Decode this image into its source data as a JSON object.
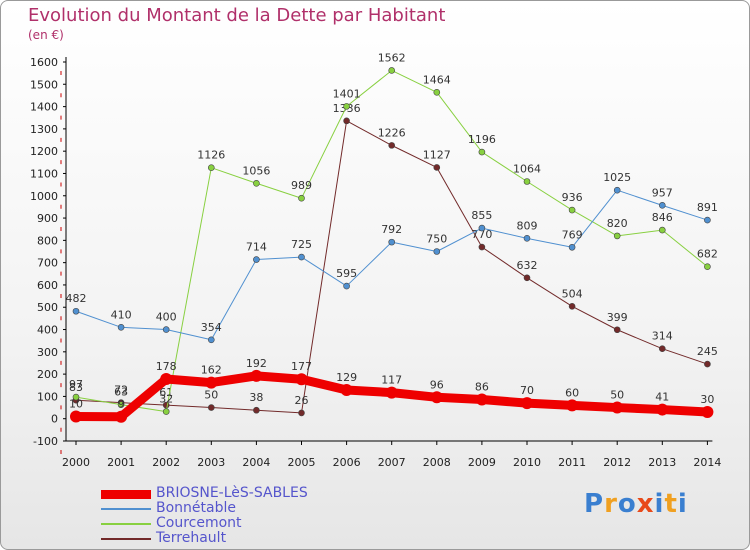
{
  "header": {
    "title": "Evolution du Montant de la Dette par Habitant",
    "subtitle": "(en €)"
  },
  "logo": {
    "letters": [
      "P",
      "r",
      "o",
      "x",
      "i",
      "t",
      "i"
    ],
    "colors": [
      "#3a7fd0",
      "#f0a020",
      "#3a7fd0",
      "#e84a1a",
      "#3a7fd0",
      "#f0a020",
      "#3a7fd0"
    ]
  },
  "colors": {
    "title": "#b0306a",
    "axis": "#000000",
    "grid_marks": "#cc0000",
    "legend_text": "#5555cc"
  },
  "chart_data": {
    "type": "line",
    "title": "Evolution du Montant de la Dette par Habitant",
    "subtitle": "(en €)",
    "xlabel": "",
    "ylabel": "",
    "x": [
      2000,
      2001,
      2002,
      2003,
      2004,
      2005,
      2006,
      2007,
      2008,
      2009,
      2010,
      2011,
      2012,
      2013,
      2014
    ],
    "ylim": [
      -100,
      1600
    ],
    "yticks": [
      -100,
      0,
      100,
      200,
      300,
      400,
      500,
      600,
      700,
      800,
      900,
      1000,
      1100,
      1200,
      1300,
      1400,
      1500,
      1600
    ],
    "grid": false,
    "legend_position": "bottom-left",
    "series": [
      {
        "name": "Terrehault",
        "color": "#722a2a",
        "width": 1,
        "values": [
          83,
          72,
          61,
          50,
          38,
          26,
          1336,
          1226,
          1127,
          770,
          632,
          504,
          399,
          314,
          245
        ],
        "labels": [
          "83",
          "72",
          "61",
          "50",
          "38",
          "26",
          "1336",
          "1226",
          "1127",
          "770",
          "632",
          "504",
          "399",
          "314",
          "245"
        ]
      },
      {
        "name": "Courcemont",
        "color": "#88d040",
        "width": 1,
        "values": [
          97,
          63,
          32,
          1126,
          1056,
          989,
          1401,
          1562,
          1464,
          1196,
          1064,
          936,
          820,
          846,
          682
        ],
        "labels": [
          "97",
          "63",
          "32",
          "1126",
          "1056",
          "989",
          "1401",
          "1562",
          "1464",
          "1196",
          "1064",
          "936",
          "820",
          "846",
          "682"
        ]
      },
      {
        "name": "Bonnétable",
        "color": "#5090d0",
        "width": 1,
        "values": [
          482,
          410,
          400,
          354,
          714,
          725,
          595,
          792,
          750,
          855,
          809,
          769,
          1025,
          957,
          891
        ],
        "labels": [
          "482",
          "410",
          "400",
          "354",
          "714",
          "725",
          "595",
          "792",
          "750",
          "855",
          "809",
          "769",
          "1025",
          "957",
          "891"
        ]
      },
      {
        "name": "BRIOSNE-LèS-SABLES",
        "color": "#ee0000",
        "width": 9,
        "values": [
          10,
          9,
          178,
          162,
          192,
          177,
          129,
          117,
          96,
          86,
          70,
          60,
          50,
          41,
          30
        ],
        "labels": [
          "10",
          "9",
          "178",
          "162",
          "192",
          "177",
          "129",
          "117",
          "96",
          "86",
          "70",
          "60",
          "50",
          "41",
          "30"
        ]
      }
    ],
    "legend_order": [
      "BRIOSNE-LèS-SABLES",
      "Bonnétable",
      "Courcemont",
      "Terrehault"
    ]
  }
}
